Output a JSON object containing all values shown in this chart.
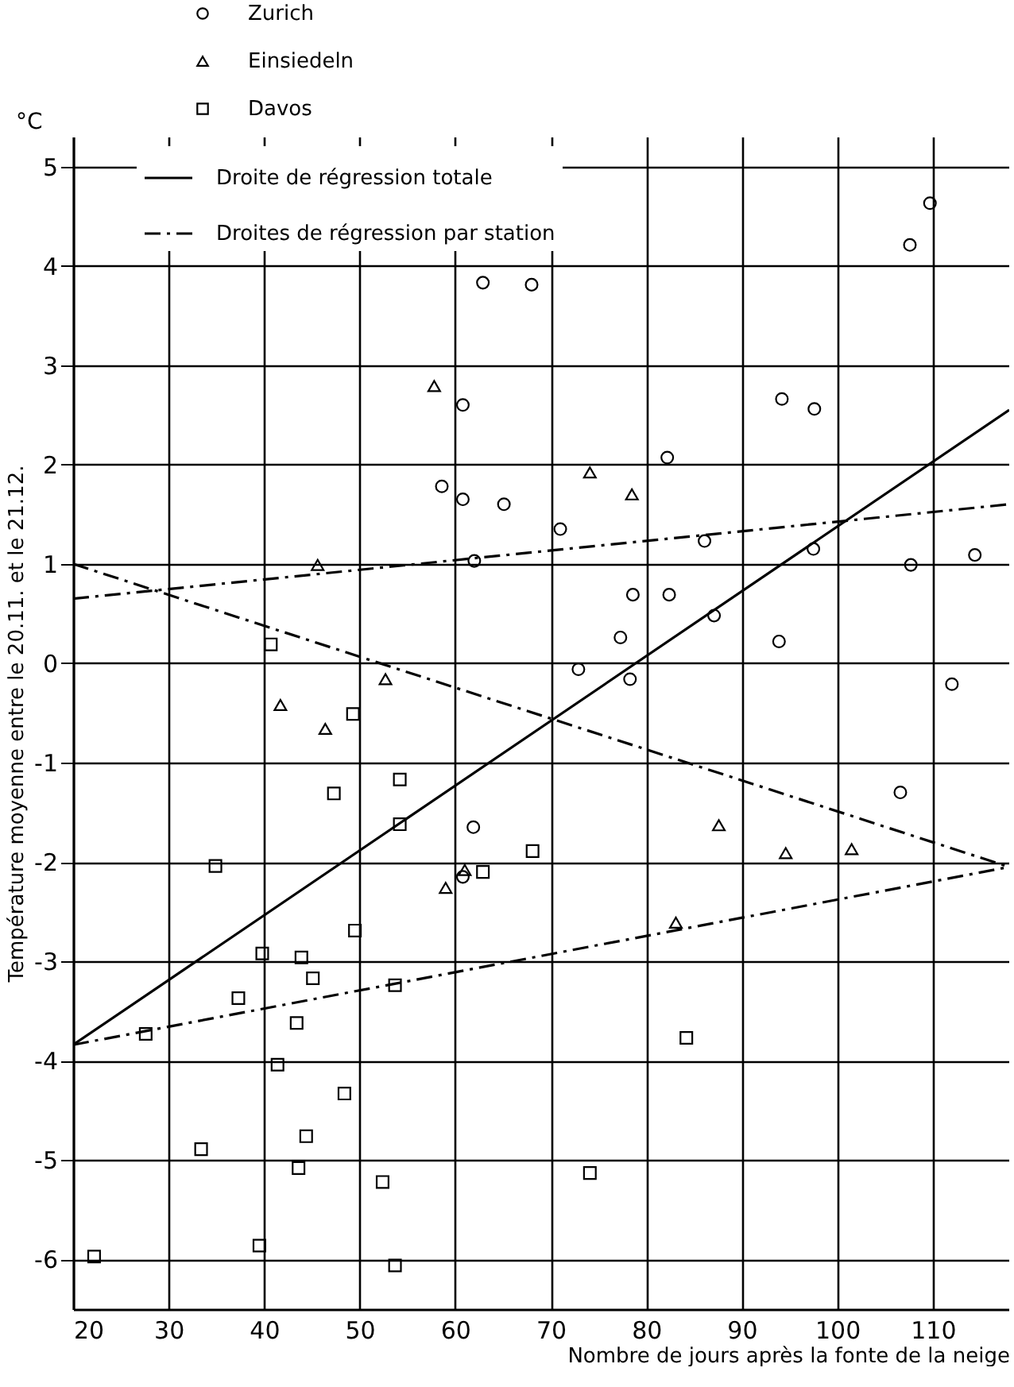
{
  "chart_data": {
    "type": "scatter",
    "xlabel": "Nombre de jours après la fonte de la neige",
    "ylabel": "Température moyenne entre le 20.11. et le 21.12.",
    "annotations": [
      "°C"
    ],
    "xlim": [
      20,
      118
    ],
    "ylim": [
      -6.5,
      5.3
    ],
    "xticks": [
      20,
      30,
      40,
      50,
      60,
      70,
      80,
      90,
      100,
      110
    ],
    "yticks": [
      -6,
      -5,
      -4,
      -3,
      -2,
      -1,
      0,
      1,
      2,
      3,
      4,
      5
    ],
    "grid": true,
    "legend": "top left",
    "series": [
      {
        "name": "Zurich",
        "marker": "circle",
        "color": "#000000",
        "x": [
          62.9,
          68,
          60.8,
          58.6,
          60.8,
          65.1,
          62,
          107.6,
          109.7,
          94.2,
          97.6,
          82.2,
          71,
          86.1,
          97.5,
          107.7,
          114.4,
          78.6,
          82.4,
          87.1,
          77.3,
          93.9,
          72.9,
          78.3,
          112,
          61.9,
          60.8,
          106.6
        ],
        "values": [
          3.83,
          3.81,
          2.6,
          1.78,
          1.65,
          1.6,
          1.03,
          4.21,
          4.63,
          2.66,
          2.56,
          2.07,
          1.35,
          1.23,
          1.15,
          0.99,
          1.09,
          0.69,
          0.69,
          0.48,
          0.26,
          0.22,
          -0.06,
          -0.16,
          -0.21,
          -1.65,
          -2.15,
          -1.3
        ]
      },
      {
        "name": "Einsiedeln",
        "marker": "triangle",
        "color": "#000000",
        "x": [
          57.8,
          45.6,
          52.7,
          41.7,
          46.4,
          74.1,
          78.5,
          61,
          59,
          87.6,
          94.6,
          101.5,
          83.1
        ],
        "values": [
          2.79,
          0.99,
          -0.16,
          -0.42,
          -0.66,
          1.92,
          1.7,
          -2.08,
          -2.26,
          -1.63,
          -1.91,
          -1.87,
          -2.61
        ]
      },
      {
        "name": "Davos",
        "marker": "square",
        "color": "#000000",
        "x": [
          40.7,
          49.3,
          54.2,
          47.3,
          54.2,
          34.9,
          62.9,
          68.1,
          49.5,
          39.8,
          43.9,
          45.1,
          37.3,
          53.7,
          27.6,
          43.4,
          41.4,
          48.4,
          44.4,
          33.4,
          43.6,
          52.4,
          39.5,
          22.2,
          53.7,
          84.2,
          74.1
        ],
        "values": [
          0.19,
          -0.51,
          -1.17,
          -1.31,
          -1.62,
          -2.04,
          -2.1,
          -1.89,
          -2.69,
          -2.92,
          -2.96,
          -3.17,
          -3.37,
          -3.24,
          -3.73,
          -3.62,
          -4.04,
          -4.33,
          -4.76,
          -4.89,
          -5.08,
          -5.22,
          -5.86,
          -5.97,
          -6.06,
          -3.77,
          -5.13
        ]
      },
      {
        "name": "Droite de régression totale",
        "type": "line",
        "line_style": "solid",
        "color": "#000000",
        "x": [
          20,
          118
        ],
        "values": [
          -3.84,
          2.55
        ]
      },
      {
        "name": "Droites de régression par station",
        "type": "line",
        "line_style": "dashed",
        "color": "#000000",
        "x": [
          20,
          118
        ],
        "values": [
          0.65,
          1.6
        ]
      },
      {
        "type": "line",
        "line_style": "dashed",
        "color": "#000000",
        "x": [
          20,
          118
        ],
        "values": [
          1.0,
          -2.05
        ]
      },
      {
        "type": "line",
        "line_style": "dashed",
        "color": "#000000",
        "x": [
          20,
          118
        ],
        "values": [
          -3.84,
          -2.05
        ]
      }
    ]
  }
}
